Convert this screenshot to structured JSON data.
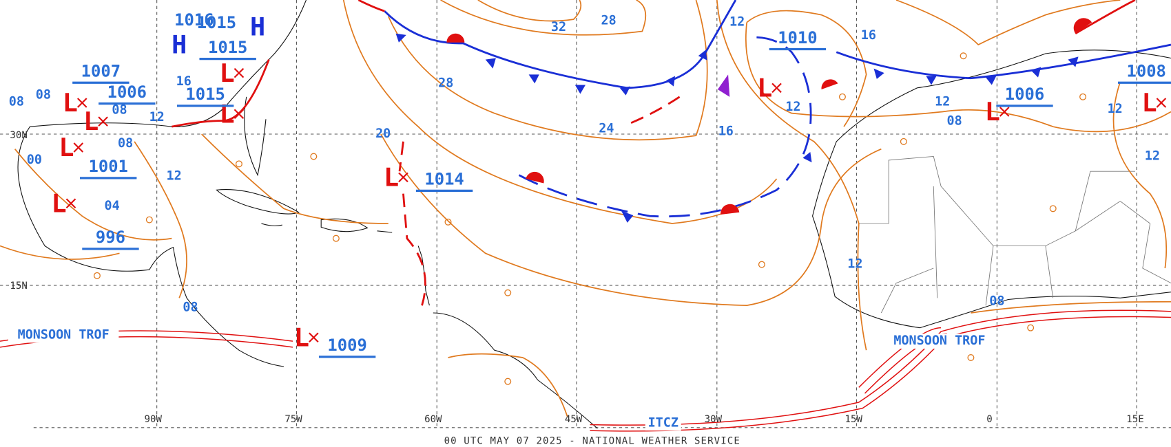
{
  "map": {
    "low_symbol": "L",
    "high_symbol": "H",
    "lows": [
      "1010",
      "1014",
      "1009",
      "996",
      "1006",
      "1008",
      "1001",
      "1007",
      "1006",
      "1015",
      "1015"
    ],
    "highs": [
      "1016",
      "1015"
    ],
    "isobar_labels": [
      "32",
      "28",
      "28",
      "24",
      "20",
      "16",
      "12",
      "16",
      "12",
      "12",
      "12",
      "08",
      "12",
      "12",
      "08",
      "08",
      "12",
      "12",
      "08",
      "16",
      "08",
      "08",
      "04",
      "00",
      "08"
    ],
    "longitude_labels": [
      "90W",
      "75W",
      "60W",
      "45W",
      "30W",
      "15W",
      "0",
      "15E"
    ],
    "latitude_labels": [
      "30N",
      "15N"
    ],
    "features": [
      "MONSOON TROF",
      "MONSOON TROF",
      "ITCZ"
    ],
    "footer": "00 UTC MAY 07 2025 - NATIONAL WEATHER SERVICE"
  }
}
